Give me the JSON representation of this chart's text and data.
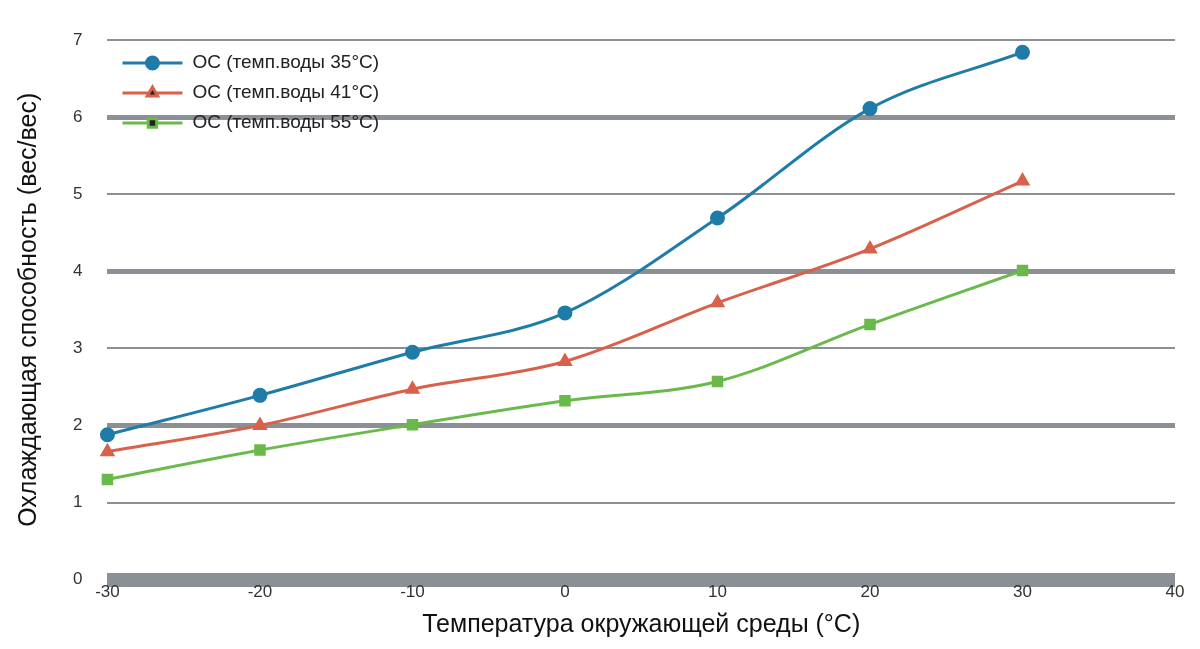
{
  "chart_data": {
    "type": "line",
    "xlabel": "Температура окружающей среды (°C)",
    "ylabel": "Охлаждающая способность (вес/вес)",
    "x": [
      -30,
      -20,
      -10,
      0,
      10,
      20,
      30
    ],
    "series": [
      {
        "name": "ОС (темп.воды 35°C)",
        "color": "#1f7ca8",
        "marker": "circle",
        "values": [
          1.88,
          2.39,
          2.95,
          3.46,
          4.69,
          6.11,
          6.84
        ]
      },
      {
        "name": "ОС (темп.воды 41°C)",
        "color": "#d9604a",
        "marker": "triangle",
        "values": [
          1.66,
          2.0,
          2.47,
          2.83,
          3.59,
          4.29,
          5.17
        ]
      },
      {
        "name": "ОС (темп.воды 55°C)",
        "color": "#6ab94b",
        "marker": "square",
        "values": [
          1.3,
          1.68,
          2.01,
          2.32,
          2.57,
          3.31,
          4.01
        ]
      }
    ],
    "xlim": [
      -30,
      40
    ],
    "xticks": [
      -30,
      -20,
      -10,
      0,
      10,
      20,
      30,
      40
    ],
    "ylim": [
      0,
      7
    ],
    "yticks": [
      0,
      1,
      2,
      3,
      4,
      5,
      6,
      7
    ],
    "grid": "y",
    "legend": "top left",
    "line_style": "solid"
  }
}
